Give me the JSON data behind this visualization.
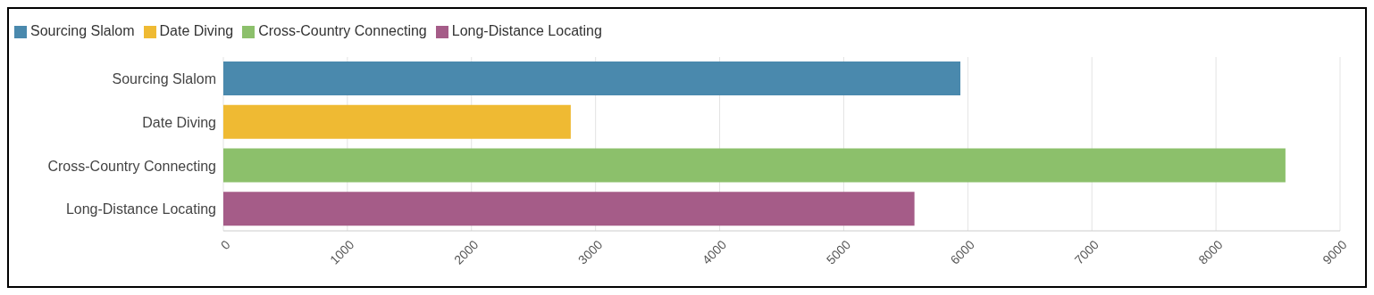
{
  "chart_data": {
    "type": "bar",
    "orientation": "horizontal",
    "stacked": true,
    "categories": [
      "Sourcing Slalom",
      "Date Diving",
      "Cross-Country Connecting",
      "Long-Distance Locating"
    ],
    "series": [
      {
        "name": "Sourcing Slalom",
        "color": "#4a89ad",
        "values": [
          5940,
          null,
          null,
          null
        ]
      },
      {
        "name": "Date Diving",
        "color": "#efba33",
        "values": [
          null,
          2800,
          null,
          null
        ]
      },
      {
        "name": "Cross-Country Connecting",
        "color": "#8cc06b",
        "values": [
          null,
          null,
          8560,
          null
        ]
      },
      {
        "name": "Long-Distance Locating",
        "color": "#a55c88",
        "values": [
          null,
          null,
          null,
          5570
        ]
      }
    ],
    "xlim": [
      0,
      9000
    ],
    "xticks": [
      0,
      1000,
      2000,
      3000,
      4000,
      5000,
      6000,
      7000,
      8000,
      9000
    ],
    "grid": "x",
    "legend": "top left"
  }
}
